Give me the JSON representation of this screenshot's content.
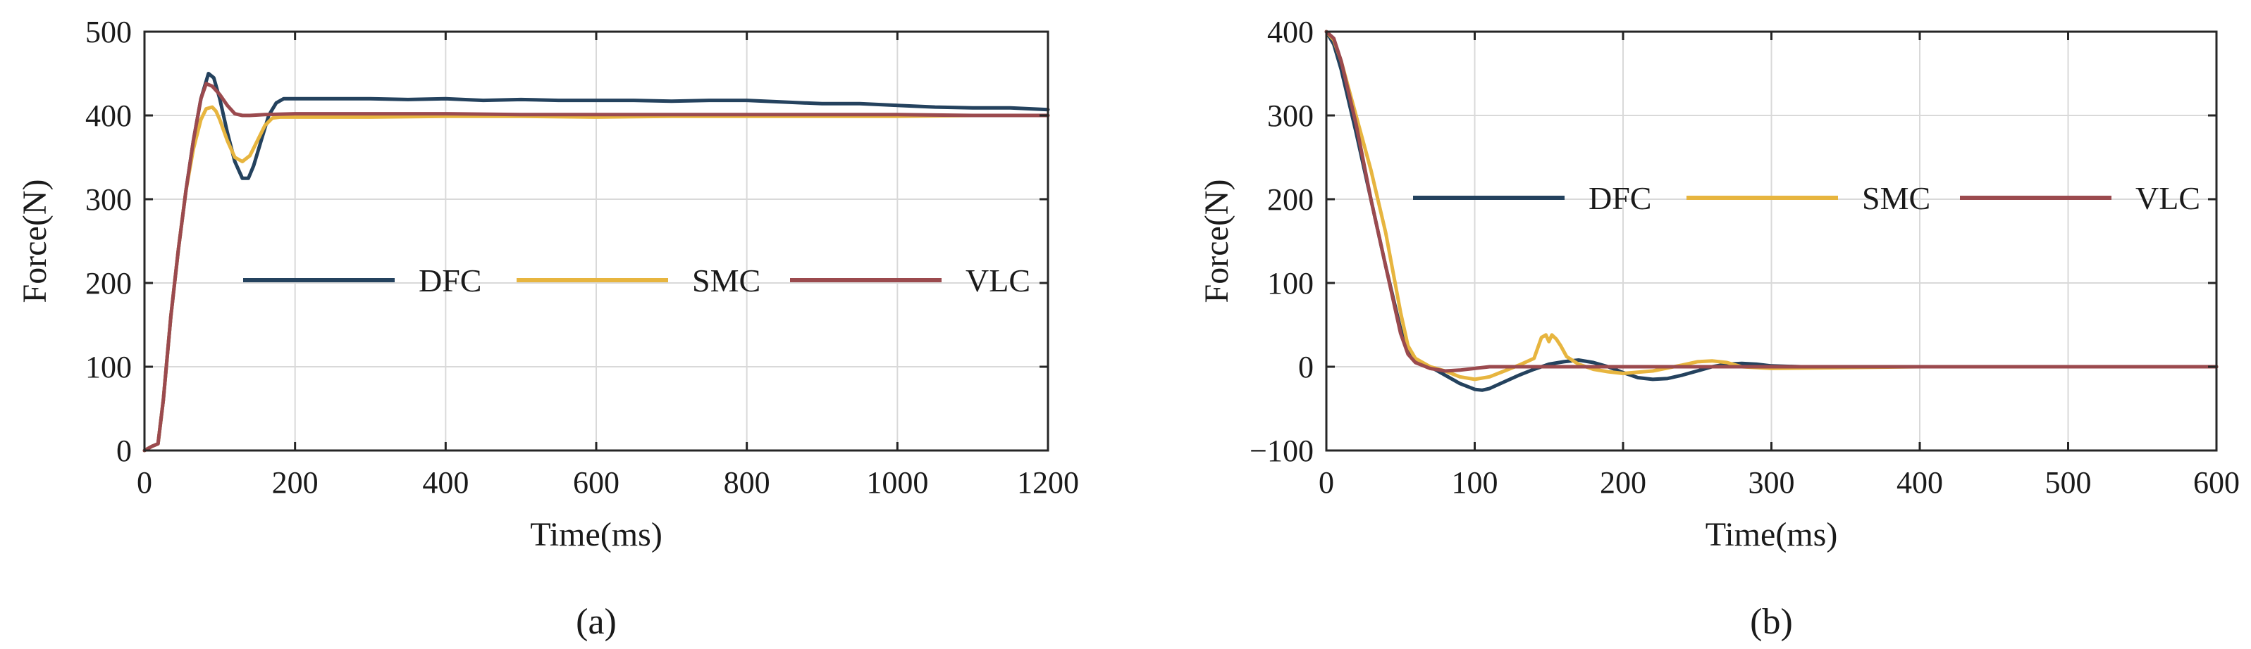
{
  "colors": {
    "DFC": "#24425e",
    "SMC": "#e7b53f",
    "VLC": "#9b4a4e",
    "grid": "#d9d9d9",
    "axis": "#262626"
  },
  "chart_data": [
    {
      "type": "line",
      "caption": "(a)",
      "xlabel": "Time(ms)",
      "ylabel": "Force(N)",
      "xlim": [
        0,
        1200
      ],
      "ylim": [
        0,
        500
      ],
      "xticks": [
        0,
        200,
        400,
        600,
        800,
        1000,
        1200
      ],
      "yticks": [
        0,
        100,
        200,
        300,
        400,
        500
      ],
      "grid": true,
      "legend": {
        "placement": "center-middle",
        "entries": [
          "DFC",
          "SMC",
          "VLC"
        ]
      },
      "series": [
        {
          "name": "DFC",
          "x": [
            0,
            10,
            18,
            25,
            35,
            45,
            55,
            65,
            75,
            85,
            92,
            100,
            110,
            120,
            130,
            138,
            145,
            155,
            165,
            175,
            185,
            200,
            250,
            300,
            350,
            400,
            450,
            500,
            550,
            600,
            650,
            700,
            750,
            800,
            850,
            900,
            950,
            1000,
            1050,
            1100,
            1150,
            1200
          ],
          "y": [
            0,
            5,
            8,
            60,
            160,
            240,
            310,
            370,
            420,
            450,
            445,
            420,
            380,
            345,
            325,
            325,
            340,
            370,
            400,
            415,
            420,
            420,
            420,
            420,
            419,
            420,
            418,
            419,
            418,
            418,
            418,
            417,
            418,
            418,
            416,
            414,
            414,
            412,
            410,
            409,
            409,
            407
          ]
        },
        {
          "name": "SMC",
          "x": [
            0,
            10,
            18,
            25,
            35,
            45,
            55,
            65,
            75,
            82,
            90,
            95,
            100,
            110,
            120,
            130,
            140,
            150,
            160,
            170,
            180,
            200,
            300,
            400,
            500,
            600,
            700,
            800,
            900,
            1000,
            1100,
            1200
          ],
          "y": [
            0,
            5,
            8,
            60,
            160,
            240,
            310,
            360,
            395,
            408,
            410,
            405,
            395,
            370,
            350,
            345,
            352,
            370,
            388,
            397,
            398,
            398,
            398,
            399,
            399,
            398,
            399,
            399,
            399,
            399,
            400,
            400
          ]
        },
        {
          "name": "VLC",
          "x": [
            0,
            10,
            18,
            25,
            35,
            45,
            55,
            65,
            75,
            82,
            90,
            100,
            110,
            120,
            130,
            140,
            160,
            200,
            300,
            400,
            500,
            600,
            700,
            800,
            900,
            1000,
            1100,
            1200
          ],
          "y": [
            0,
            5,
            8,
            60,
            160,
            240,
            310,
            370,
            420,
            438,
            435,
            425,
            412,
            402,
            400,
            400,
            401,
            402,
            402,
            402,
            401,
            401,
            401,
            401,
            401,
            401,
            400,
            400
          ]
        }
      ]
    },
    {
      "type": "line",
      "caption": "(b)",
      "xlabel": "Time(ms)",
      "ylabel": "Force(N)",
      "xlim": [
        0,
        600
      ],
      "ylim": [
        -100,
        400
      ],
      "xticks": [
        0,
        100,
        200,
        300,
        400,
        500,
        600
      ],
      "yticks": [
        -100,
        0,
        100,
        200,
        300,
        400
      ],
      "grid": true,
      "legend": {
        "placement": "upper-middle",
        "entries": [
          "DFC",
          "SMC",
          "VLC"
        ]
      },
      "series": [
        {
          "name": "DFC",
          "x": [
            0,
            5,
            10,
            20,
            30,
            40,
            50,
            55,
            60,
            70,
            80,
            90,
            100,
            105,
            110,
            120,
            130,
            140,
            150,
            160,
            170,
            180,
            190,
            200,
            210,
            220,
            230,
            240,
            250,
            260,
            270,
            280,
            290,
            300,
            320,
            400,
            500,
            600
          ],
          "y": [
            400,
            385,
            355,
            280,
            200,
            120,
            45,
            20,
            8,
            0,
            -10,
            -20,
            -27,
            -28,
            -26,
            -18,
            -10,
            -3,
            3,
            6,
            8,
            5,
            0,
            -7,
            -13,
            -15,
            -14,
            -10,
            -5,
            0,
            3,
            4,
            3,
            1,
            0,
            0,
            0,
            0
          ]
        },
        {
          "name": "SMC",
          "x": [
            0,
            5,
            10,
            20,
            30,
            40,
            50,
            55,
            60,
            70,
            80,
            90,
            100,
            110,
            120,
            130,
            140,
            145,
            148,
            150,
            152,
            155,
            158,
            162,
            170,
            180,
            190,
            200,
            220,
            240,
            250,
            260,
            270,
            280,
            300,
            400,
            500,
            600
          ],
          "y": [
            400,
            390,
            365,
            300,
            235,
            160,
            65,
            25,
            10,
            0,
            -5,
            -12,
            -15,
            -12,
            -5,
            2,
            10,
            35,
            38,
            30,
            38,
            33,
            25,
            12,
            3,
            -3,
            -6,
            -8,
            -5,
            2,
            6,
            7,
            5,
            0,
            -2,
            0,
            0,
            0
          ]
        },
        {
          "name": "VLC",
          "x": [
            0,
            5,
            10,
            20,
            30,
            40,
            50,
            55,
            60,
            70,
            80,
            90,
            100,
            110,
            120,
            130,
            140,
            150,
            160,
            180,
            200,
            250,
            300,
            400,
            500,
            600
          ],
          "y": [
            400,
            392,
            365,
            290,
            200,
            120,
            40,
            15,
            5,
            -2,
            -5,
            -4,
            -2,
            0,
            0,
            0,
            0,
            0,
            0,
            0,
            0,
            0,
            0,
            0,
            0,
            0
          ]
        }
      ]
    }
  ]
}
